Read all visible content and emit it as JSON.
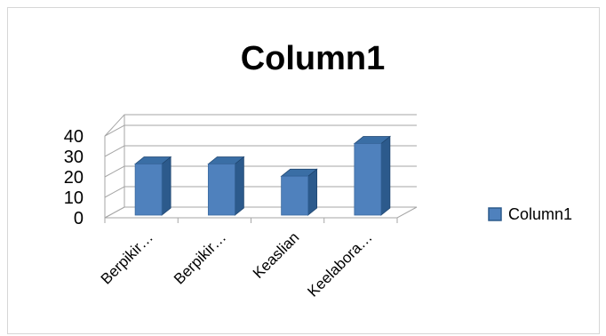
{
  "chart_data": {
    "type": "bar",
    "title": "Column1",
    "categories": [
      "Berpikir…",
      "Berpikir…",
      "Keaslian",
      "Keelabora…"
    ],
    "series": [
      {
        "name": "Column1",
        "values": [
          25,
          25,
          19,
          35
        ]
      }
    ],
    "ylim": [
      0,
      40
    ],
    "yticks": [
      "0",
      "10",
      "20",
      "30",
      "40"
    ],
    "xlabel": "",
    "ylabel": "",
    "grid": true,
    "legend": "right",
    "style": "3d-column"
  },
  "colors": {
    "bar_front": "#4f81bd",
    "bar_side": "#2c5a8c",
    "bar_top": "#3a6ea5",
    "grid": "#a6a6a6",
    "frame": "#d6d6d6"
  }
}
